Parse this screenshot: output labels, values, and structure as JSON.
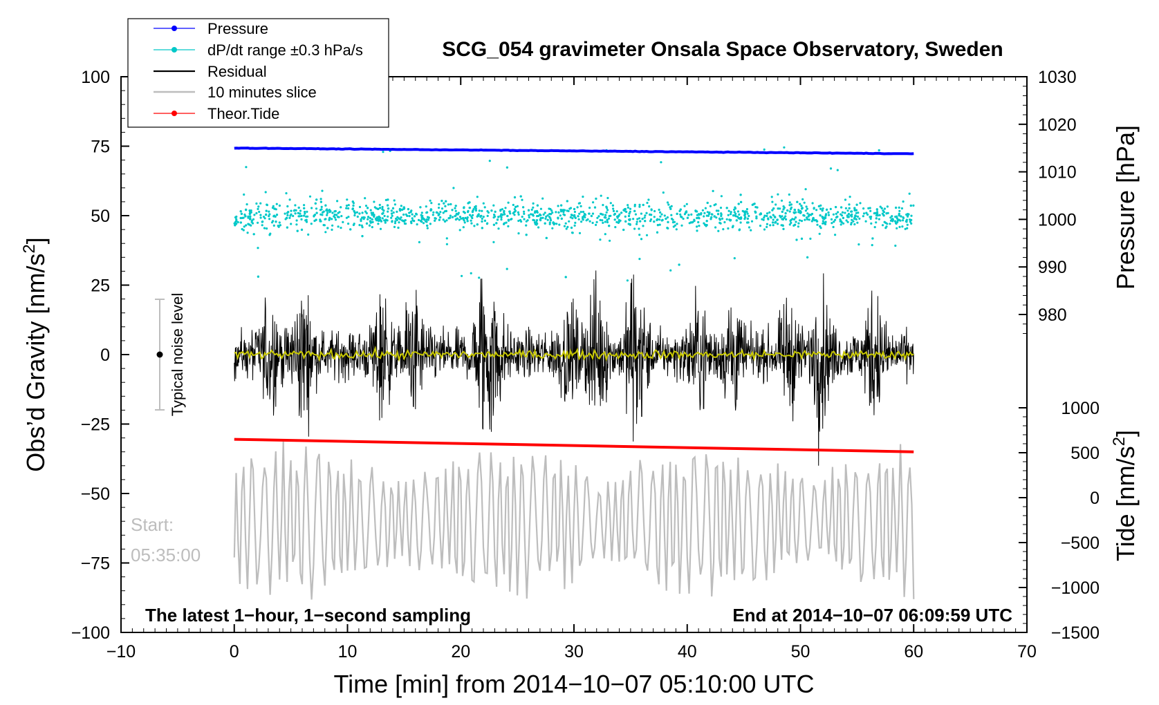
{
  "chart_data": {
    "type": "line",
    "title": "SCG_054 gravimeter Onsala Space Observatory, Sweden",
    "xlabel": "Time [min] from 2014−10−07 05:10:00 UTC",
    "ylabel": "Obs’d Gravity [nm/s²]",
    "ylabel_parts": [
      "Obs’d Gravity [nm/s",
      "2",
      "]"
    ],
    "xlim": [
      -10,
      70
    ],
    "ylim": [
      -100,
      100
    ],
    "xticks": [
      -10,
      0,
      10,
      20,
      30,
      40,
      50,
      60,
      70
    ],
    "yticks": [
      -100,
      -75,
      -50,
      -25,
      0,
      25,
      50,
      75,
      100
    ],
    "xtick_labels": [
      "−10",
      "0",
      "10",
      "20",
      "30",
      "40",
      "50",
      "60",
      "70"
    ],
    "ytick_labels": [
      "−100",
      "−75",
      "−50",
      "−25",
      "0",
      "25",
      "50",
      "75",
      "100"
    ],
    "right_pressure_axis": {
      "label": "Pressure [hPa]",
      "ticks": [
        980,
        990,
        1000,
        1010,
        1020,
        1030
      ],
      "tick_labels": [
        "980",
        "990",
        "1000",
        "1010",
        "1020",
        "1030"
      ],
      "range": [
        970,
        1030
      ]
    },
    "right_tide_axis": {
      "label": "Tide [nm/s²]",
      "label_parts": [
        "Tide [nm/s",
        "2",
        "]"
      ],
      "ticks": [
        -1500,
        -1000,
        -500,
        0,
        500,
        1000
      ],
      "tick_labels": [
        "−1500",
        "−1000",
        "−500",
        "0",
        "500",
        "1000"
      ],
      "range": [
        -1500,
        1000
      ]
    },
    "legend": {
      "placement": "top-left",
      "entries": [
        {
          "label": "Pressure",
          "color": "#0000ff",
          "marker": true
        },
        {
          "label": "dP/dt range ±0.3 hPa/s",
          "color": "#00c8c8",
          "marker": true
        },
        {
          "label": "Residual",
          "color": "#000000",
          "marker": false
        },
        {
          "label": "10 minutes slice",
          "color": "#bdbdbd",
          "marker": false
        },
        {
          "label": "Theor.Tide",
          "color": "#ff0000",
          "marker": true
        }
      ]
    },
    "series": [
      {
        "name": "Pressure",
        "axis": "pressure",
        "color": "#0000ff",
        "x": [
          0,
          60
        ],
        "values": [
          1015.0,
          1013.8
        ]
      },
      {
        "name": "dP/dt range ±0.3 hPa/s",
        "axis": "gravity",
        "color": "#00c8c8",
        "center": 50,
        "spread": 17
      },
      {
        "name": "Residual",
        "axis": "gravity",
        "color": "#000000",
        "center": 0,
        "amplitude": 40
      },
      {
        "name": "Residual smoothed",
        "axis": "gravity",
        "color": "#c8c800",
        "center": 0,
        "amplitude": 3
      },
      {
        "name": "Theor.Tide",
        "axis": "gravity",
        "color": "#ff0000",
        "x": [
          0,
          60
        ],
        "values": [
          -30.5,
          -35.0
        ]
      },
      {
        "name": "10 minutes slice",
        "axis": "gravity",
        "color": "#bdbdbd",
        "center": -60,
        "amplitude": 30,
        "min": -90
      }
    ],
    "annotations": {
      "noise_label": "Typical noise level",
      "noise_range": [
        -20,
        20
      ],
      "start_label": "Start:",
      "start_time": "05:35:00",
      "bottom_left": "The latest 1−hour, 1−second sampling",
      "bottom_right": "End at 2014−10−07 06:09:59 UTC"
    },
    "colors": {
      "pressure": "#0000ff",
      "dpdt": "#00c8c8",
      "residual": "#000000",
      "smoothed": "#c8c800",
      "slice": "#bdbdbd",
      "tide": "#ff0000"
    }
  }
}
